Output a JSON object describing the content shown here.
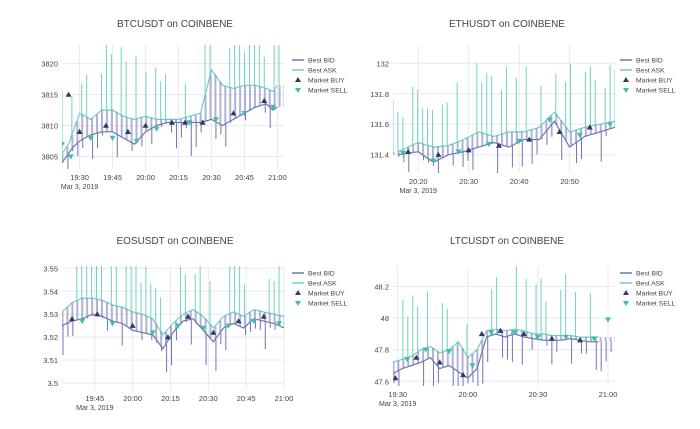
{
  "colors": {
    "bid": "#6f74b3",
    "ask": "#6fd3c0",
    "buy": "#2f3a63",
    "sell": "#3fbfa8",
    "grid": "#e9e9ee",
    "text": "#444444"
  },
  "legend": [
    "Best BID",
    "Best ASK",
    "Market BUY",
    "Market SELL"
  ],
  "chart_data": [
    {
      "type": "line",
      "title": "BTCUSDT on COINBENE",
      "x_type": "time",
      "x_start": "2019-03-03 19:22",
      "x_end": "2019-03-03 21:03",
      "xticks": [
        "19:30",
        "19:45",
        "20:00",
        "20:15",
        "20:30",
        "20:45",
        "21:00"
      ],
      "xticks_min": [
        0,
        15,
        30,
        45,
        60,
        75,
        90
      ],
      "x_origin": "19:30",
      "date_label": "Mar 3, 2019",
      "yticks": [
        "3805",
        "3810",
        "3815",
        "3820"
      ],
      "ytick_values": [
        3805,
        3810,
        3815,
        3820
      ],
      "ylim": [
        3803,
        3823
      ],
      "legend_placement": "top-right",
      "series": [
        {
          "name": "Best BID",
          "x": [
            -8,
            -5,
            -3,
            0,
            5,
            10,
            15,
            20,
            25,
            30,
            35,
            40,
            45,
            55,
            60,
            65,
            70,
            75,
            80,
            85,
            88,
            90
          ],
          "values": [
            3804,
            3805.5,
            3806.5,
            3807.5,
            3808.5,
            3809,
            3809,
            3808,
            3807,
            3809,
            3810,
            3810.5,
            3810.5,
            3810.5,
            3811,
            3810,
            3811,
            3812,
            3813,
            3813.5,
            3812.5,
            3813
          ]
        },
        {
          "name": "Best ASK",
          "x": [
            -8,
            -5,
            -3,
            0,
            5,
            10,
            15,
            20,
            25,
            30,
            35,
            40,
            45,
            55,
            60,
            65,
            70,
            75,
            80,
            85,
            88,
            90
          ],
          "values": [
            3805.5,
            3807,
            3809,
            3812,
            3811,
            3812.5,
            3812.5,
            3811.5,
            3811,
            3811.5,
            3811,
            3811,
            3811,
            3812,
            3819,
            3816.5,
            3816,
            3816.5,
            3816.5,
            3816,
            3815.5,
            3816.5
          ]
        },
        {
          "name": "Market BUY",
          "x": [
            -5,
            0,
            12,
            22,
            30,
            42,
            48,
            56,
            70,
            84
          ],
          "values": [
            3815,
            3809,
            3810,
            3809,
            3810,
            3810.5,
            3810.5,
            3810.5,
            3812,
            3814
          ]
        },
        {
          "name": "Market SELL",
          "x": [
            -8,
            -4,
            5,
            15,
            26,
            35,
            50,
            62,
            75,
            88
          ],
          "values": [
            3807,
            3805,
            3808,
            3808,
            3807.5,
            3809.5,
            3810.5,
            3811,
            3812,
            3813
          ]
        }
      ]
    },
    {
      "type": "line",
      "title": "ETHUSDT on COINBENE",
      "x_type": "time",
      "x_start": "2019-03-03 20:15",
      "x_end": "2019-03-03 20:59",
      "xticks": [
        "20:20",
        "20:30",
        "20:40",
        "20:50"
      ],
      "xticks_min": [
        0,
        10,
        20,
        30
      ],
      "x_origin": "20:20",
      "date_label": "Mar 3, 2019",
      "yticks": [
        "131.4",
        "131.6",
        "131.8",
        "132"
      ],
      "ytick_values": [
        131.4,
        131.6,
        131.8,
        132
      ],
      "ylim": [
        131.28,
        132.12
      ],
      "legend_placement": "top-right",
      "series": [
        {
          "name": "Best BID",
          "x": [
            -4,
            -2,
            0,
            3,
            6,
            9,
            12,
            15,
            18,
            21,
            24,
            27,
            30,
            33,
            36,
            39
          ],
          "values": [
            131.4,
            131.41,
            131.42,
            131.35,
            131.4,
            131.42,
            131.45,
            131.48,
            131.45,
            131.5,
            131.5,
            131.62,
            131.45,
            131.52,
            131.55,
            131.58
          ]
        },
        {
          "name": "Best ASK",
          "x": [
            -4,
            -2,
            0,
            3,
            6,
            9,
            12,
            15,
            18,
            21,
            24,
            27,
            30,
            33,
            36,
            39
          ],
          "values": [
            131.42,
            131.45,
            131.48,
            131.45,
            131.46,
            131.5,
            131.55,
            131.52,
            131.55,
            131.55,
            131.58,
            131.68,
            131.55,
            131.58,
            131.6,
            131.62
          ]
        },
        {
          "name": "Market BUY",
          "x": [
            -2,
            4,
            10,
            16,
            22,
            28,
            34
          ],
          "values": [
            131.42,
            131.4,
            131.43,
            131.46,
            131.5,
            131.55,
            131.58
          ]
        },
        {
          "name": "Market SELL",
          "x": [
            -3,
            3,
            8,
            14,
            20,
            26,
            32,
            38
          ],
          "values": [
            131.41,
            131.36,
            131.42,
            131.47,
            131.49,
            131.63,
            131.53,
            131.6
          ]
        }
      ]
    },
    {
      "type": "line",
      "title": "EOSUSDT on COINBENE",
      "x_type": "time",
      "x_start": "2019-03-03 19:32",
      "x_end": "2019-03-03 21:00",
      "xticks": [
        "19:45",
        "20:00",
        "20:15",
        "20:30",
        "20:45",
        "21:00"
      ],
      "xticks_min": [
        15,
        30,
        45,
        60,
        75,
        90
      ],
      "x_origin": "19:30",
      "date_label": "Mar 3, 2019",
      "yticks": [
        "3.5",
        "3.51",
        "3.52",
        "3.53",
        "3.54",
        "3.55"
      ],
      "ytick_values": [
        3.5,
        3.51,
        3.52,
        3.53,
        3.54,
        3.55
      ],
      "ylim": [
        3.497,
        3.551
      ],
      "legend_placement": "top-right",
      "series": [
        {
          "name": "Best BID",
          "x": [
            2,
            6,
            10,
            14,
            18,
            22,
            26,
            30,
            34,
            38,
            42,
            46,
            50,
            54,
            58,
            62,
            66,
            70,
            74,
            78,
            82,
            86,
            90
          ],
          "values": [
            3.525,
            3.527,
            3.528,
            3.53,
            3.529,
            3.527,
            3.526,
            3.523,
            3.522,
            3.521,
            3.515,
            3.522,
            3.527,
            3.528,
            3.523,
            3.518,
            3.524,
            3.526,
            3.524,
            3.528,
            3.527,
            3.526,
            3.524
          ]
        },
        {
          "name": "Best ASK",
          "x": [
            2,
            6,
            10,
            14,
            18,
            22,
            26,
            30,
            34,
            38,
            42,
            46,
            50,
            54,
            58,
            62,
            66,
            70,
            74,
            78,
            82,
            86,
            90
          ],
          "values": [
            3.531,
            3.535,
            3.537,
            3.537,
            3.536,
            3.534,
            3.533,
            3.531,
            3.53,
            3.528,
            3.521,
            3.526,
            3.53,
            3.532,
            3.529,
            3.524,
            3.529,
            3.531,
            3.529,
            3.532,
            3.531,
            3.53,
            3.529
          ]
        },
        {
          "name": "Market BUY",
          "x": [
            6,
            16,
            30,
            44,
            52,
            62,
            72,
            82
          ],
          "values": [
            3.528,
            3.53,
            3.525,
            3.52,
            3.529,
            3.522,
            3.527,
            3.529
          ]
        },
        {
          "name": "Market SELL",
          "x": [
            10,
            22,
            38,
            48,
            58,
            68,
            78,
            88
          ],
          "values": [
            3.527,
            3.526,
            3.522,
            3.525,
            3.524,
            3.525,
            3.527,
            3.526
          ]
        }
      ]
    },
    {
      "type": "line",
      "title": "LTCUSDT on COINBENE",
      "x_type": "time",
      "x_start": "2019-03-03 19:28",
      "x_end": "2019-03-03 21:03",
      "xticks": [
        "19:30",
        "20:00",
        "20:30",
        "21:00"
      ],
      "xticks_min": [
        0,
        30,
        60,
        90
      ],
      "x_origin": "19:30",
      "date_label": "Mar 3, 2019",
      "yticks": [
        "47.6",
        "47.8",
        "48",
        "48.2"
      ],
      "ytick_values": [
        47.6,
        47.8,
        48,
        48.2
      ],
      "ylim": [
        47.57,
        48.33
      ],
      "legend_placement": "top-right",
      "series": [
        {
          "name": "Best BID",
          "x": [
            -2,
            2,
            6,
            10,
            14,
            18,
            22,
            26,
            30,
            34,
            38,
            42,
            46,
            50,
            54,
            58,
            62,
            66,
            70,
            74,
            78,
            82,
            86
          ],
          "values": [
            47.65,
            47.68,
            47.7,
            47.72,
            47.75,
            47.68,
            47.7,
            47.66,
            47.62,
            47.68,
            47.88,
            47.9,
            47.88,
            47.9,
            47.88,
            47.87,
            47.86,
            47.86,
            47.86,
            47.87,
            47.86,
            47.85,
            47.85
          ]
        },
        {
          "name": "Best ASK",
          "x": [
            -2,
            2,
            6,
            10,
            14,
            18,
            22,
            26,
            30,
            34,
            38,
            42,
            46,
            50,
            54,
            58,
            62,
            66,
            70,
            74,
            78,
            82,
            86
          ],
          "values": [
            47.72,
            47.74,
            47.76,
            47.8,
            47.82,
            47.78,
            47.8,
            47.85,
            47.75,
            47.8,
            47.92,
            47.93,
            47.92,
            47.93,
            47.92,
            47.9,
            47.9,
            47.89,
            47.89,
            47.89,
            47.88,
            47.88,
            47.88
          ]
        },
        {
          "name": "Market BUY",
          "x": [
            -1,
            8,
            18,
            28,
            36,
            44,
            54,
            66,
            78
          ],
          "values": [
            47.62,
            47.75,
            47.72,
            47.64,
            47.9,
            47.92,
            47.9,
            47.87,
            47.86
          ]
        },
        {
          "name": "Market SELL",
          "x": [
            4,
            12,
            22,
            32,
            40,
            50,
            60,
            72,
            84,
            90
          ],
          "values": [
            47.74,
            47.8,
            47.79,
            47.7,
            47.91,
            47.91,
            47.88,
            47.88,
            47.87,
            47.99
          ]
        }
      ]
    }
  ]
}
